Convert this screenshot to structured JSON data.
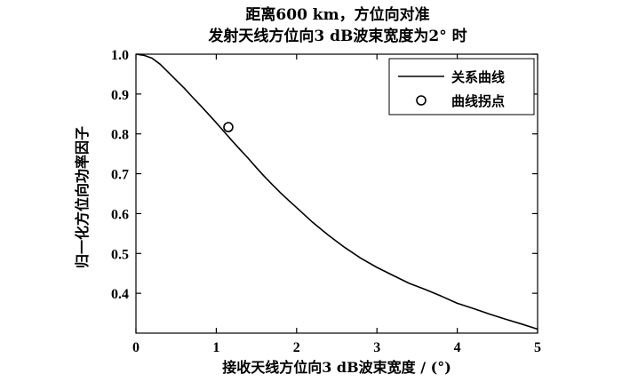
{
  "chart_data": {
    "type": "line",
    "title_line1": "距离600 km，方位向对准",
    "title_line2": "发射天线方位向3 dB波束宽度为2° 时",
    "xlabel": "接收天线方位向3 dB波束宽度 / (°)",
    "ylabel": "归一化方位向功率因子",
    "xlim": [
      0,
      5
    ],
    "ylim": [
      0.3,
      1.0
    ],
    "xticks": [
      "0",
      "1",
      "2",
      "3",
      "4",
      "5"
    ],
    "yticks": [
      "0.4",
      "0.5",
      "0.6",
      "0.7",
      "0.8",
      "0.9",
      "1.0"
    ],
    "legend": {
      "placement": "top-right",
      "entries": [
        "关系曲线",
        "曲线拐点"
      ]
    },
    "series": [
      {
        "name": "关系曲线",
        "x": [
          0,
          0.1,
          0.2,
          0.3,
          0.4,
          0.5,
          0.6,
          0.7,
          0.8,
          0.9,
          1.0,
          1.1,
          1.2,
          1.3,
          1.4,
          1.5,
          1.6,
          1.7,
          1.8,
          1.9,
          2.0,
          2.2,
          2.4,
          2.6,
          2.8,
          3.0,
          3.2,
          3.4,
          3.6,
          3.8,
          4.0,
          4.2,
          4.4,
          4.6,
          4.8,
          5.0
        ],
        "y": [
          1.0,
          0.997,
          0.99,
          0.975,
          0.955,
          0.935,
          0.915,
          0.893,
          0.872,
          0.85,
          0.828,
          0.805,
          0.782,
          0.76,
          0.738,
          0.715,
          0.693,
          0.672,
          0.652,
          0.633,
          0.615,
          0.578,
          0.545,
          0.515,
          0.488,
          0.465,
          0.445,
          0.425,
          0.41,
          0.393,
          0.375,
          0.362,
          0.348,
          0.335,
          0.323,
          0.31
        ]
      },
      {
        "name": "曲线拐点",
        "x": [
          1.15
        ],
        "y": [
          0.817
        ]
      }
    ]
  }
}
